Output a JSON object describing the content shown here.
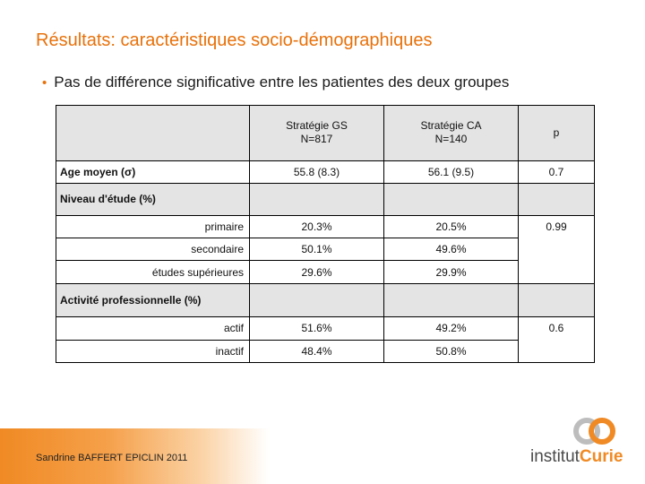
{
  "slide": {
    "title": "Résultats: caractéristiques socio-démographiques",
    "bullet": "Pas de différence significative entre les patientes des deux groupes"
  },
  "table": {
    "headers": {
      "gs_line1": "Stratégie GS",
      "gs_line2": "N=817",
      "ca_line1": "Stratégie CA",
      "ca_line2": "N=140",
      "p": "p"
    },
    "age": {
      "label": "Age moyen (σ)",
      "gs": "55.8 (8.3)",
      "ca": "56.1 (9.5)",
      "p": "0.7"
    },
    "niveau": {
      "label": "Niveau d'étude (%)",
      "p": "0.99",
      "rows": [
        {
          "label": "primaire",
          "gs": "20.3%",
          "ca": "20.5%"
        },
        {
          "label": "secondaire",
          "gs": "50.1%",
          "ca": "49.6%"
        },
        {
          "label": "études supérieures",
          "gs": "29.6%",
          "ca": "29.9%"
        }
      ]
    },
    "activite": {
      "label": "Activité professionnelle (%)",
      "p": "0.6",
      "rows": [
        {
          "label": "actif",
          "gs": "51.6%",
          "ca": "49.2%"
        },
        {
          "label": "inactif",
          "gs": "48.4%",
          "ca": "50.8%"
        }
      ]
    }
  },
  "footer": {
    "text": "Sandrine BAFFERT   EPICLIN 2011"
  },
  "logo": {
    "part1": "institut",
    "part2": "Curie"
  }
}
